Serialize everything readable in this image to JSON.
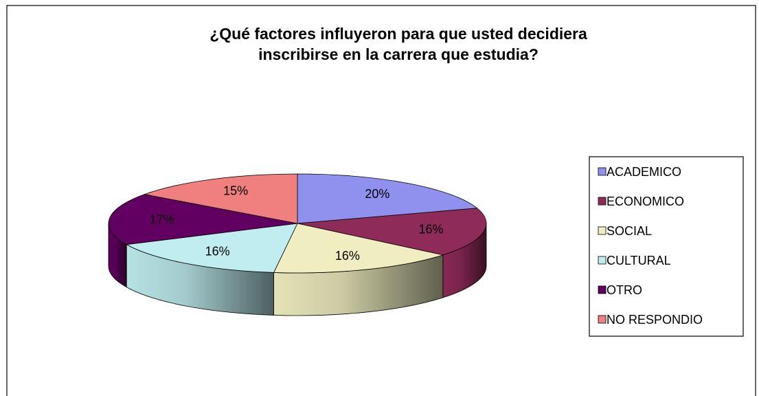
{
  "chart_data": {
    "type": "pie",
    "title": "¿Qué factores influyeron para que usted decidiera\ninscribirse en la carrera que estudia?",
    "categories": [
      "ACADEMICO",
      "ECONOMICO",
      "SOCIAL",
      "CULTURAL",
      "OTRO",
      "NO RESPONDIO"
    ],
    "values": [
      20,
      16,
      16,
      16,
      17,
      15
    ],
    "value_labels": [
      "20%",
      "16%",
      "16%",
      "16%",
      "17%",
      "15%"
    ],
    "colors": [
      "#9090ee",
      "#8e2b58",
      "#f0eec0",
      "#c0eef0",
      "#620062",
      "#f08080"
    ],
    "legend": "right"
  }
}
